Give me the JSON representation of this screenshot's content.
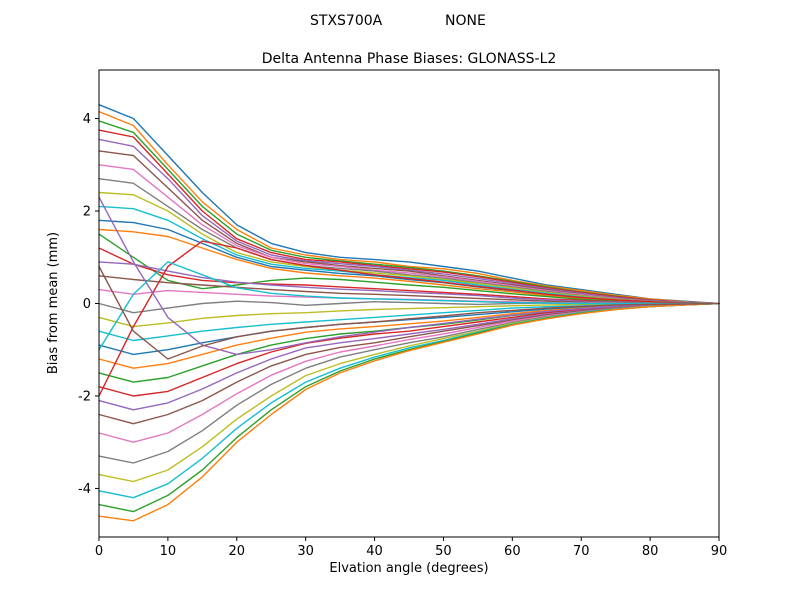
{
  "chart_data": {
    "type": "line",
    "suptitle": {
      "model": "STXS700A",
      "mode": "NONE"
    },
    "title": "Delta Antenna Phase Biases: GLONASS-L2",
    "xlabel": "Elvation angle (degrees)",
    "ylabel": "Bias from mean (mm)",
    "xlim": [
      0,
      90
    ],
    "ylim": [
      -5.05,
      5.05
    ],
    "xticks": [
      0,
      10,
      20,
      30,
      40,
      50,
      60,
      70,
      80,
      90
    ],
    "yticks": [
      -4,
      -2,
      0,
      2,
      4
    ],
    "grid": false,
    "legend": "none",
    "x": [
      0,
      5,
      10,
      15,
      20,
      25,
      30,
      35,
      40,
      45,
      50,
      55,
      60,
      65,
      70,
      75,
      80,
      85,
      90
    ],
    "series": [
      {
        "color": "#1f77b4",
        "values": [
          4.3,
          4.0,
          3.2,
          2.4,
          1.7,
          1.3,
          1.1,
          1.0,
          0.95,
          0.9,
          0.8,
          0.7,
          0.55,
          0.4,
          0.3,
          0.2,
          0.1,
          0.05,
          0
        ]
      },
      {
        "color": "#ff7f0e",
        "values": [
          4.15,
          3.85,
          3.0,
          2.2,
          1.6,
          1.2,
          1.05,
          0.95,
          0.9,
          0.8,
          0.75,
          0.65,
          0.5,
          0.38,
          0.28,
          0.18,
          0.1,
          0.04,
          0
        ]
      },
      {
        "color": "#2ca02c",
        "values": [
          3.95,
          3.7,
          2.9,
          2.1,
          1.5,
          1.15,
          1.0,
          0.92,
          0.85,
          0.78,
          0.7,
          0.6,
          0.48,
          0.36,
          0.25,
          0.16,
          0.08,
          0.03,
          0
        ]
      },
      {
        "color": "#d62728",
        "values": [
          3.75,
          3.6,
          2.8,
          2.0,
          1.4,
          1.1,
          0.95,
          0.9,
          0.82,
          0.75,
          0.68,
          0.58,
          0.46,
          0.34,
          0.24,
          0.15,
          0.08,
          0.03,
          0
        ]
      },
      {
        "color": "#9467bd",
        "values": [
          3.55,
          3.4,
          2.7,
          1.9,
          1.35,
          1.05,
          0.92,
          0.86,
          0.8,
          0.72,
          0.64,
          0.54,
          0.43,
          0.32,
          0.22,
          0.13,
          0.07,
          0.03,
          0
        ]
      },
      {
        "color": "#8c564b",
        "values": [
          3.3,
          3.2,
          2.5,
          1.8,
          1.3,
          1.0,
          0.9,
          0.82,
          0.76,
          0.7,
          0.6,
          0.5,
          0.4,
          0.3,
          0.2,
          0.12,
          0.06,
          0.02,
          0
        ]
      },
      {
        "color": "#e377c2",
        "values": [
          3.0,
          2.9,
          2.3,
          1.7,
          1.25,
          1.0,
          0.86,
          0.8,
          0.72,
          0.66,
          0.58,
          0.48,
          0.38,
          0.28,
          0.19,
          0.11,
          0.05,
          0.02,
          0
        ]
      },
      {
        "color": "#7f7f7f",
        "values": [
          2.7,
          2.6,
          2.1,
          1.6,
          1.2,
          0.95,
          0.82,
          0.76,
          0.7,
          0.62,
          0.55,
          0.45,
          0.36,
          0.26,
          0.17,
          0.1,
          0.05,
          0.02,
          0
        ]
      },
      {
        "color": "#bcbd22",
        "values": [
          2.4,
          2.35,
          2.0,
          1.5,
          1.1,
          0.9,
          0.8,
          0.72,
          0.66,
          0.6,
          0.52,
          0.43,
          0.34,
          0.24,
          0.16,
          0.09,
          0.04,
          0.02,
          0
        ]
      },
      {
        "color": "#17becf",
        "values": [
          2.1,
          2.05,
          1.8,
          1.4,
          1.05,
          0.85,
          0.76,
          0.7,
          0.62,
          0.56,
          0.5,
          0.4,
          0.31,
          0.22,
          0.14,
          0.08,
          0.04,
          0.01,
          0
        ]
      },
      {
        "color": "#1f77b4",
        "values": [
          1.8,
          1.75,
          1.6,
          1.3,
          1.0,
          0.8,
          0.72,
          0.65,
          0.6,
          0.52,
          0.45,
          0.36,
          0.28,
          0.2,
          0.13,
          0.07,
          0.03,
          0.01,
          0
        ]
      },
      {
        "color": "#ff7f0e",
        "values": [
          1.6,
          1.55,
          1.45,
          1.2,
          0.95,
          0.76,
          0.66,
          0.6,
          0.55,
          0.48,
          0.4,
          0.32,
          0.25,
          0.17,
          0.11,
          0.06,
          0.03,
          0.01,
          0
        ]
      },
      {
        "color": "#2ca02c",
        "values": [
          1.5,
          1.0,
          0.5,
          0.32,
          0.4,
          0.5,
          0.55,
          0.52,
          0.46,
          0.4,
          0.35,
          0.28,
          0.21,
          0.15,
          0.09,
          0.05,
          0.02,
          0.01,
          0
        ]
      },
      {
        "color": "#d62728",
        "values": [
          1.2,
          0.85,
          0.62,
          0.5,
          0.45,
          0.42,
          0.4,
          0.36,
          0.32,
          0.28,
          0.24,
          0.2,
          0.15,
          0.1,
          0.07,
          0.04,
          0.02,
          0.01,
          0
        ]
      },
      {
        "color": "#9467bd",
        "values": [
          0.9,
          0.85,
          0.7,
          0.56,
          0.46,
          0.4,
          0.35,
          0.31,
          0.28,
          0.24,
          0.21,
          0.17,
          0.12,
          0.08,
          0.05,
          0.03,
          0.02,
          0.01,
          0
        ]
      },
      {
        "color": "#8c564b",
        "values": [
          0.6,
          0.52,
          0.45,
          0.4,
          0.35,
          0.3,
          0.26,
          0.22,
          0.2,
          0.17,
          0.14,
          0.11,
          0.08,
          0.05,
          0.03,
          0.02,
          0.01,
          0,
          0
        ]
      },
      {
        "color": "#e377c2",
        "values": [
          0.3,
          0.2,
          0.28,
          0.24,
          0.2,
          0.16,
          0.14,
          0.12,
          0.1,
          0.09,
          0.07,
          0.05,
          0.04,
          0.02,
          0.01,
          0.01,
          0,
          0,
          0
        ]
      },
      {
        "color": "#7f7f7f",
        "values": [
          0.0,
          -0.2,
          -0.1,
          0.0,
          0.05,
          0.02,
          -0.04,
          0.0,
          0.04,
          0.02,
          0.0,
          -0.02,
          0.0,
          0.01,
          0.0,
          0.0,
          0.0,
          0.0,
          0
        ]
      },
      {
        "color": "#bcbd22",
        "values": [
          -0.3,
          -0.5,
          -0.42,
          -0.32,
          -0.26,
          -0.22,
          -0.2,
          -0.16,
          -0.13,
          -0.11,
          -0.09,
          -0.07,
          -0.05,
          -0.03,
          -0.02,
          -0.01,
          0,
          0,
          0
        ]
      },
      {
        "color": "#17becf",
        "values": [
          -0.6,
          -0.8,
          -0.7,
          -0.6,
          -0.52,
          -0.45,
          -0.4,
          -0.35,
          -0.3,
          -0.25,
          -0.2,
          -0.15,
          -0.1,
          -0.07,
          -0.05,
          -0.03,
          -0.02,
          -0.01,
          0
        ]
      },
      {
        "color": "#1f77b4",
        "values": [
          -0.9,
          -1.1,
          -1.0,
          -0.85,
          -0.72,
          -0.6,
          -0.52,
          -0.45,
          -0.4,
          -0.35,
          -0.3,
          -0.24,
          -0.18,
          -0.12,
          -0.08,
          -0.05,
          -0.03,
          -0.01,
          0
        ]
      },
      {
        "color": "#ff7f0e",
        "values": [
          -1.2,
          -1.4,
          -1.3,
          -1.1,
          -0.9,
          -0.75,
          -0.62,
          -0.55,
          -0.5,
          -0.44,
          -0.38,
          -0.3,
          -0.22,
          -0.15,
          -0.1,
          -0.06,
          -0.03,
          -0.01,
          0
        ]
      },
      {
        "color": "#2ca02c",
        "values": [
          -1.5,
          -1.7,
          -1.6,
          -1.35,
          -1.1,
          -0.9,
          -0.76,
          -0.66,
          -0.6,
          -0.52,
          -0.45,
          -0.36,
          -0.26,
          -0.18,
          -0.12,
          -0.07,
          -0.04,
          -0.02,
          0
        ]
      },
      {
        "color": "#d62728",
        "values": [
          -1.8,
          -2.0,
          -1.9,
          -1.6,
          -1.3,
          -1.05,
          -0.86,
          -0.75,
          -0.66,
          -0.6,
          -0.5,
          -0.4,
          -0.3,
          -0.2,
          -0.13,
          -0.08,
          -0.04,
          -0.02,
          0
        ]
      },
      {
        "color": "#9467bd",
        "values": [
          -2.1,
          -2.3,
          -2.15,
          -1.85,
          -1.5,
          -1.2,
          -0.96,
          -0.85,
          -0.76,
          -0.66,
          -0.56,
          -0.45,
          -0.33,
          -0.23,
          -0.15,
          -0.09,
          -0.05,
          -0.02,
          0
        ]
      },
      {
        "color": "#8c564b",
        "values": [
          -2.4,
          -2.6,
          -2.4,
          -2.1,
          -1.7,
          -1.35,
          -1.1,
          -0.95,
          -0.85,
          -0.72,
          -0.6,
          -0.48,
          -0.36,
          -0.25,
          -0.16,
          -0.1,
          -0.05,
          -0.02,
          0
        ]
      },
      {
        "color": "#e377c2",
        "values": [
          -2.8,
          -3.0,
          -2.8,
          -2.4,
          -1.95,
          -1.55,
          -1.25,
          -1.05,
          -0.92,
          -0.78,
          -0.66,
          -0.52,
          -0.38,
          -0.27,
          -0.18,
          -0.11,
          -0.06,
          -0.02,
          0
        ]
      },
      {
        "color": "#7f7f7f",
        "values": [
          -3.3,
          -3.45,
          -3.2,
          -2.75,
          -2.2,
          -1.75,
          -1.4,
          -1.16,
          -1.0,
          -0.85,
          -0.72,
          -0.56,
          -0.41,
          -0.29,
          -0.19,
          -0.11,
          -0.06,
          -0.03,
          0
        ]
      },
      {
        "color": "#bcbd22",
        "values": [
          -3.7,
          -3.85,
          -3.6,
          -3.1,
          -2.5,
          -2.0,
          -1.56,
          -1.3,
          -1.1,
          -0.92,
          -0.76,
          -0.6,
          -0.43,
          -0.3,
          -0.2,
          -0.12,
          -0.06,
          -0.03,
          0
        ]
      },
      {
        "color": "#17becf",
        "values": [
          -4.05,
          -4.2,
          -3.9,
          -3.35,
          -2.7,
          -2.15,
          -1.7,
          -1.4,
          -1.16,
          -0.96,
          -0.8,
          -0.62,
          -0.45,
          -0.31,
          -0.2,
          -0.12,
          -0.07,
          -0.03,
          0
        ]
      },
      {
        "color": "#2ca02c",
        "values": [
          -4.35,
          -4.5,
          -4.15,
          -3.6,
          -2.9,
          -2.3,
          -1.8,
          -1.46,
          -1.2,
          -1.0,
          -0.82,
          -0.64,
          -0.46,
          -0.32,
          -0.21,
          -0.13,
          -0.07,
          -0.03,
          0
        ]
      },
      {
        "color": "#ff7f0e",
        "values": [
          -4.6,
          -4.7,
          -4.35,
          -3.75,
          -3.0,
          -2.4,
          -1.86,
          -1.5,
          -1.24,
          -1.02,
          -0.84,
          -0.66,
          -0.47,
          -0.33,
          -0.22,
          -0.13,
          -0.07,
          -0.03,
          0
        ]
      },
      {
        "color": "#d62728",
        "values": [
          -2.0,
          -0.5,
          0.8,
          1.35,
          1.2,
          0.95,
          0.82,
          0.72,
          0.62,
          0.54,
          0.46,
          0.37,
          0.29,
          0.2,
          0.13,
          0.08,
          0.04,
          0.01,
          0
        ]
      },
      {
        "color": "#9467bd",
        "values": [
          2.3,
          0.9,
          -0.3,
          -0.9,
          -1.1,
          -1.0,
          -0.85,
          -0.72,
          -0.62,
          -0.52,
          -0.43,
          -0.34,
          -0.25,
          -0.17,
          -0.11,
          -0.06,
          -0.03,
          -0.01,
          0
        ]
      },
      {
        "color": "#17becf",
        "values": [
          -1.0,
          0.2,
          0.9,
          0.62,
          0.34,
          0.22,
          0.16,
          0.12,
          0.1,
          0.08,
          0.06,
          0.04,
          0.02,
          0.01,
          0,
          0,
          0,
          0,
          0
        ]
      },
      {
        "color": "#8c564b",
        "values": [
          0.8,
          -0.6,
          -1.2,
          -0.92,
          -0.72,
          -0.6,
          -0.52,
          -0.45,
          -0.4,
          -0.33,
          -0.27,
          -0.2,
          -0.15,
          -0.1,
          -0.06,
          -0.03,
          -0.02,
          -0.01,
          0
        ]
      }
    ]
  }
}
